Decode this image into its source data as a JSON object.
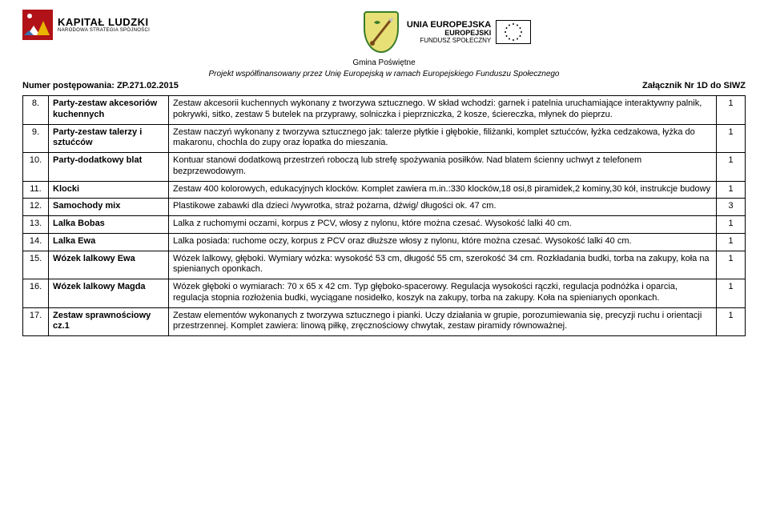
{
  "logos": {
    "kl_title": "KAPITAŁ LUDZKI",
    "kl_sub": "NARODOWA STRATEGIA SPÓJNOŚCI",
    "ue_l1": "UNIA EUROPEJSKA",
    "ue_l2": "EUROPEJSKI",
    "ue_l3": "FUNDUSZ SPOŁECZNY"
  },
  "subheader": {
    "gmina": "Gmina Poświętne",
    "proj": "Projekt współfinansowany przez Unię Europejską w ramach Europejskiego Funduszu Społecznego"
  },
  "numer": "Numer postępowania: ZP.271.02.2015",
  "zalacznik": "Załącznik Nr 1D do SIWZ",
  "rows": [
    {
      "n": "8.",
      "name": "Party-zestaw akcesoriów kuchennych",
      "desc": "Zestaw akcesorii kuchennych wykonany z tworzywa sztucznego. W skład wchodzi: garnek i patelnia uruchamiające interaktywny palnik, pokrywki, sitko, zestaw 5 butelek na przyprawy, solniczka i pieprzniczka, 2 kosze, ściereczka, młynek do pieprzu.",
      "q": "1"
    },
    {
      "n": "9.",
      "name": "Party-zestaw talerzy i sztućców",
      "desc": "Zestaw naczyń wykonany z tworzywa sztucznego jak: talerze płytkie i głębokie, filiżanki, komplet sztućców, łyżka cedzakowa, łyżka do makaronu, chochla do zupy oraz łopatka do mieszania.",
      "q": "1"
    },
    {
      "n": "10.",
      "name": "Party-dodatkowy blat",
      "desc": "Kontuar stanowi dodatkową przestrzeń roboczą lub strefę spożywania posiłków.  Nad blatem ścienny uchwyt z telefonem bezprzewodowym.",
      "q": "1"
    },
    {
      "n": "11.",
      "name": "Klocki",
      "desc": "Zestaw 400 kolorowych, edukacyjnych klocków. Komplet zawiera m.in.:330 klocków,18 osi,8 piramidek,2 kominy,30 kół, instrukcje budowy",
      "q": "1"
    },
    {
      "n": "12.",
      "name": "Samochody mix",
      "desc": "Plastikowe zabawki dla dzieci /wywrotka, straż pożarna, dźwig/ długości ok. 47 cm.",
      "q": "3"
    },
    {
      "n": "13.",
      "name": "Lalka Bobas",
      "desc": "Lalka z ruchomymi oczami, korpus z PCV, włosy z nylonu, które można czesać. Wysokość lalki 40 cm.",
      "q": "1"
    },
    {
      "n": "14.",
      "name": "Lalka Ewa",
      "desc": "Lalka posiada: ruchome oczy, korpus z PCV oraz  dłuższe włosy z nylonu, które można czesać. Wysokość lalki 40 cm.",
      "q": "1"
    },
    {
      "n": "15.",
      "name": "Wózek lalkowy Ewa",
      "desc": "Wózek lalkowy, głęboki. Wymiary wózka: wysokość 53 cm, długość 55 cm, szerokość 34 cm. Rozkładania budki, torba na zakupy, koła na spienianych oponkach.",
      "q": "1"
    },
    {
      "n": "16.",
      "name": "Wózek lalkowy Magda",
      "desc": "Wózek głęboki o wymiarach: 70 x 65 x 42 cm. Typ głęboko-spacerowy. Regulacja wysokości rączki, regulacja podnóżka i oparcia, regulacja stopnia rozłożenia budki, wyciągane nosidełko, koszyk na zakupy, torba na zakupy. Koła na spienianych oponkach.",
      "q": "1"
    },
    {
      "n": "17.",
      "name": "Zestaw sprawnościowy cz.1",
      "desc": "Zestaw elementów wykonanych z tworzywa sztucznego i pianki. Uczy działania w grupie, porozumiewania się, precyzji ruchu i orientacji przestrzennej. Komplet zawiera: linową piłkę, zręcznościowy chwytak, zestaw piramidy równoważnej.",
      "q": "1"
    }
  ],
  "colors": {
    "border": "#000000",
    "text": "#000000",
    "kl_red": "#b01217",
    "shield_bg": "#e7e076",
    "shield_border": "#3a7d2a"
  }
}
